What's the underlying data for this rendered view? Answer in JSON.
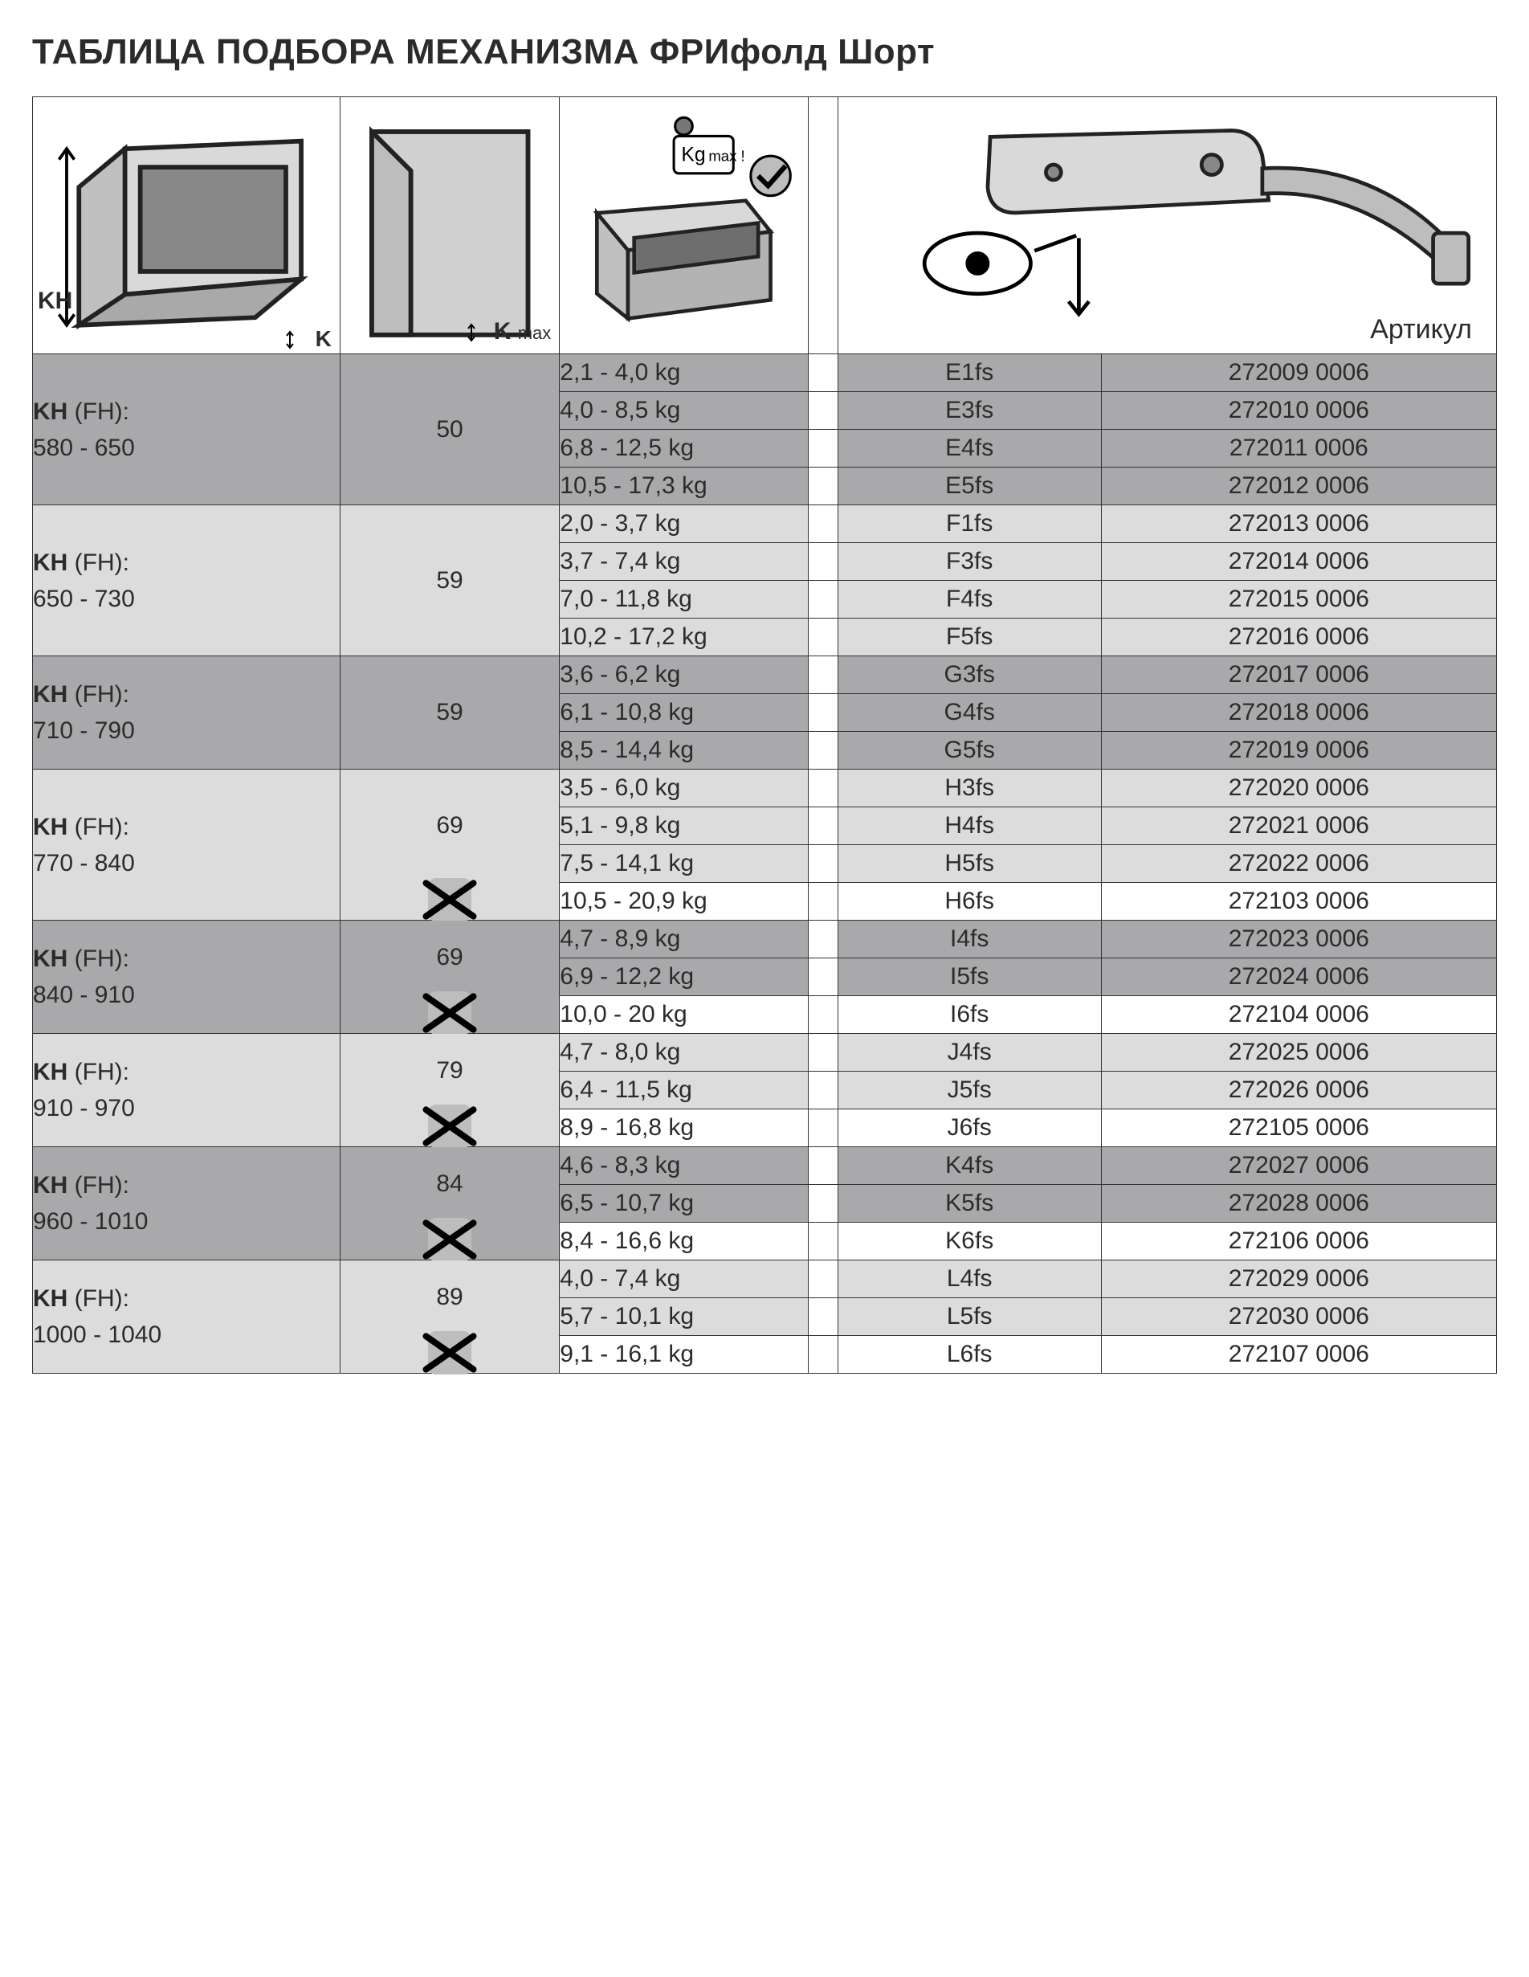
{
  "title": "ТАБЛИЦА ПОДБОРА МЕХАНИЗМА ФРИфолд Шорт",
  "header": {
    "kh_label": "KH",
    "k_label": "K",
    "kmax_label": "K",
    "kmax_sub": "max",
    "kg_label": "Kg",
    "kg_sub": "max !",
    "article_label": "Артикул"
  },
  "kh_prefix": "KH",
  "kh_suffix": " (FH):",
  "groups": [
    {
      "range": "580 - 650",
      "kmax": "50",
      "x_icon": false,
      "band": "d",
      "rows": [
        {
          "kg": "2,1 - 4,0 kg",
          "code": "E1fs",
          "art": "272009 0006"
        },
        {
          "kg": "4,0 - 8,5 kg",
          "code": "E3fs",
          "art": "272010 0006"
        },
        {
          "kg": "6,8 - 12,5 kg",
          "code": "E4fs",
          "art": "272011 0006"
        },
        {
          "kg": "10,5 - 17,3 kg",
          "code": "E5fs",
          "art": "272012 0006"
        }
      ]
    },
    {
      "range": "650 - 730",
      "kmax": "59",
      "x_icon": false,
      "band": "l",
      "rows": [
        {
          "kg": "2,0 - 3,7 kg",
          "code": "F1fs",
          "art": "272013 0006"
        },
        {
          "kg": "3,7 - 7,4 kg",
          "code": "F3fs",
          "art": "272014 0006"
        },
        {
          "kg": "7,0 - 11,8 kg",
          "code": "F4fs",
          "art": "272015 0006"
        },
        {
          "kg": "10,2 - 17,2 kg",
          "code": "F5fs",
          "art": "272016 0006"
        }
      ]
    },
    {
      "range": "710 - 790",
      "kmax": "59",
      "x_icon": false,
      "band": "d",
      "rows": [
        {
          "kg": "3,6 - 6,2 kg",
          "code": "G3fs",
          "art": "272017 0006"
        },
        {
          "kg": "6,1 - 10,8 kg",
          "code": "G4fs",
          "art": "272018 0006"
        },
        {
          "kg": "8,5 - 14,4 kg",
          "code": "G5fs",
          "art": "272019 0006"
        }
      ]
    },
    {
      "range": "770 - 840",
      "kmax": "69",
      "x_icon": true,
      "band": "l",
      "rows": [
        {
          "kg": "3,5 - 6,0 kg",
          "code": "H3fs",
          "art": "272020 0006"
        },
        {
          "kg": "5,1 - 9,8 kg",
          "code": "H4fs",
          "art": "272021 0006"
        },
        {
          "kg": "7,5 - 14,1 kg",
          "code": "H5fs",
          "art": "272022 0006"
        },
        {
          "kg": "10,5 - 20,9 kg",
          "code": "H6fs",
          "art": "272103 0006",
          "hl": true
        }
      ]
    },
    {
      "range": "840 - 910",
      "kmax": "69",
      "x_icon": true,
      "band": "d",
      "rows": [
        {
          "kg": "4,7 - 8,9 kg",
          "code": "I4fs",
          "art": "272023 0006"
        },
        {
          "kg": "6,9 - 12,2 kg",
          "code": "I5fs",
          "art": "272024 0006"
        },
        {
          "kg": "10,0 - 20 kg",
          "code": "I6fs",
          "art": "272104 0006",
          "hl": true
        }
      ]
    },
    {
      "range": "910 - 970",
      "kmax": "79",
      "x_icon": true,
      "band": "l",
      "rows": [
        {
          "kg": "4,7 - 8,0 kg",
          "code": "J4fs",
          "art": "272025 0006"
        },
        {
          "kg": "6,4 - 11,5 kg",
          "code": "J5fs",
          "art": "272026 0006"
        },
        {
          "kg": "8,9 - 16,8 kg",
          "code": "J6fs",
          "art": "272105 0006",
          "hl": true
        }
      ]
    },
    {
      "range": "960 - 1010",
      "kmax": "84",
      "x_icon": true,
      "band": "d",
      "rows": [
        {
          "kg": "4,6 - 8,3 kg",
          "code": "K4fs",
          "art": "272027 0006"
        },
        {
          "kg": "6,5 - 10,7 kg",
          "code": "K5fs",
          "art": "272028 0006"
        },
        {
          "kg": "8,4 - 16,6 kg",
          "code": "K6fs",
          "art": "272106 0006",
          "hl": true
        }
      ]
    },
    {
      "range": "1000 - 1040",
      "kmax": "89",
      "x_icon": true,
      "band": "l",
      "rows": [
        {
          "kg": "4,0 - 7,4 kg",
          "code": "L4fs",
          "art": "272029 0006"
        },
        {
          "kg": "5,7 - 10,1 kg",
          "code": "L5fs",
          "art": "272030 0006"
        },
        {
          "kg": "9,1 - 16,1 kg",
          "code": "L6fs",
          "art": "272107 0006",
          "hl": true
        }
      ]
    }
  ]
}
